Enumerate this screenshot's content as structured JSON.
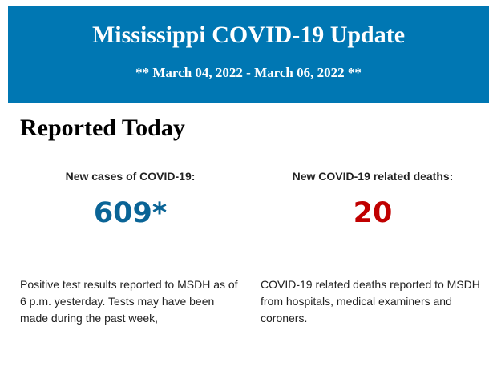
{
  "header": {
    "title": "Mississippi COVID-19 Update",
    "date_range": "** March 04, 2022 - March 06, 2022 **",
    "background": "#0077b3"
  },
  "section_title": "Reported Today",
  "cases": {
    "label": "New cases of COVID-19:",
    "value": "609*",
    "color": "#0a6496",
    "note": "Positive test results reported to MSDH as of 6 p.m. yesterday. Tests may have been made during the past week,"
  },
  "deaths": {
    "label": "New COVID-19 related deaths:",
    "value": "20",
    "color": "#c00000",
    "note": "COVID-19 related deaths reported to MSDH from hospitals, medical examiners and coroners."
  }
}
